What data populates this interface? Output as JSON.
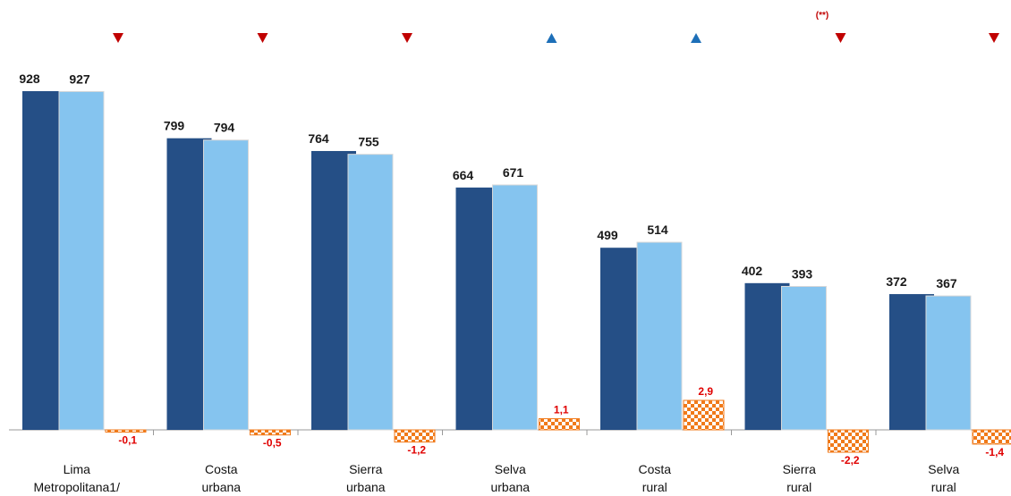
{
  "chart_data": {
    "type": "bar",
    "categories": [
      [
        "Lima",
        "Metropolitana1/"
      ],
      [
        "Costa",
        "urbana"
      ],
      [
        "Sierra",
        "urbana"
      ],
      [
        "Selva",
        "urbana"
      ],
      [
        "Costa",
        "rural"
      ],
      [
        "Sierra",
        "rural"
      ],
      [
        "Selva",
        "rural"
      ]
    ],
    "series": [
      {
        "values": [
          928,
          799,
          764,
          664,
          499,
          402,
          372
        ],
        "color": "#254f86"
      },
      {
        "values": [
          927,
          794,
          755,
          671,
          514,
          393,
          367
        ],
        "color": "#85c4ef"
      }
    ],
    "change": {
      "values": [
        -0.1,
        -0.5,
        -1.2,
        1.1,
        2.9,
        -2.2,
        -1.4
      ],
      "labels": [
        "-0,1",
        "-0,5",
        "-1,2",
        "1,1",
        "2,9",
        "-2,2",
        "-1,4"
      ],
      "color": "#f07a1a",
      "label_color": "#e00000"
    },
    "trend_arrows": [
      "down",
      "down",
      "down",
      "up",
      "up",
      "down",
      "down"
    ],
    "arrow_colors": {
      "down": "#c00000",
      "up": "#1d6fb8"
    },
    "annotation": "(**)",
    "ylim": [
      0,
      1000
    ]
  }
}
